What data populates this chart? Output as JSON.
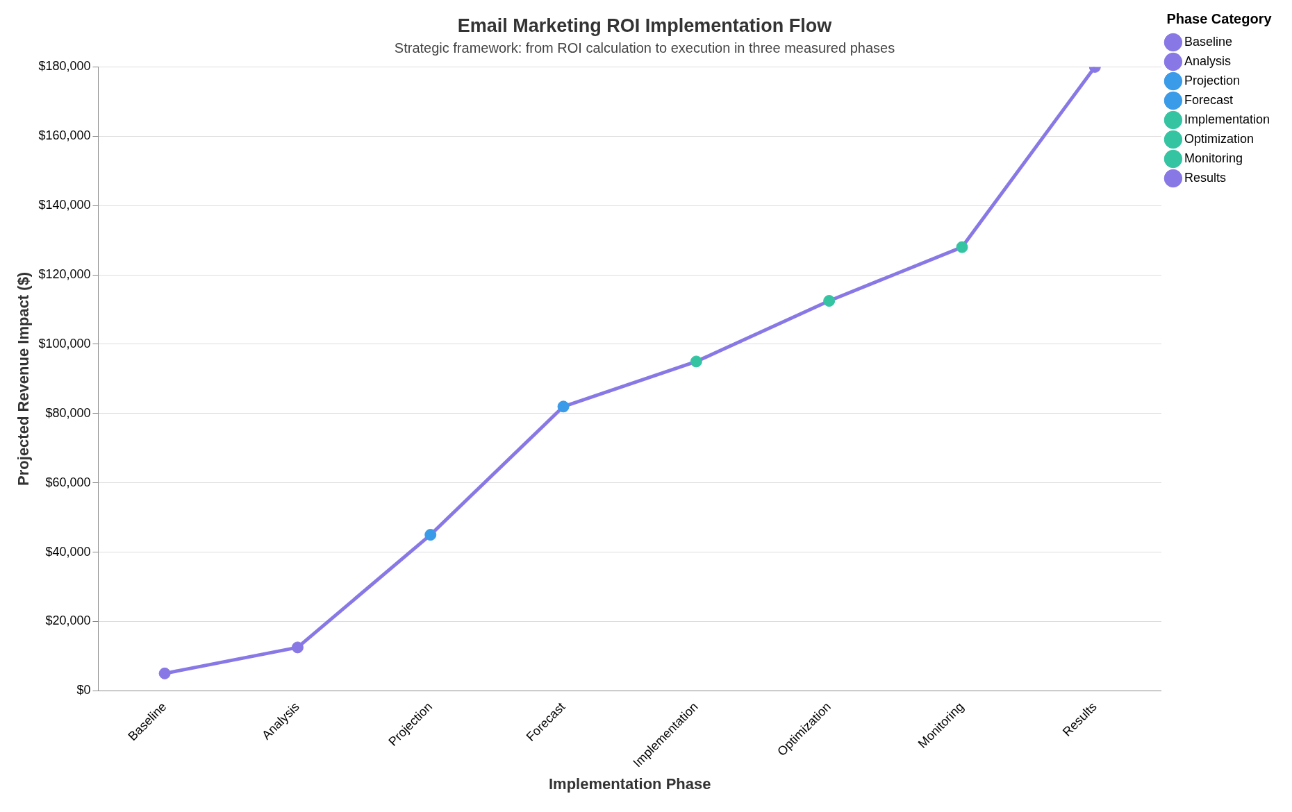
{
  "chart_data": {
    "type": "line",
    "title": "Email Marketing ROI Implementation Flow",
    "subtitle": "Strategic framework: from ROI calculation to execution in three measured phases",
    "xlabel": "Implementation Phase",
    "ylabel": "Projected Revenue Impact ($)",
    "legend_title": "Phase Category",
    "categories": [
      "Baseline",
      "Analysis",
      "Projection",
      "Forecast",
      "Implementation",
      "Optimization",
      "Monitoring",
      "Results"
    ],
    "series": [
      {
        "color": "#8878e6",
        "marker": "none",
        "values": [
          5000,
          12500,
          45000,
          82000,
          95000,
          112500,
          128000,
          180000
        ]
      },
      {
        "type": "scatter",
        "name": "Baseline",
        "color": "#8878e6",
        "x": [
          "Baseline"
        ],
        "values": [
          5000
        ]
      },
      {
        "type": "scatter",
        "name": "Analysis",
        "color": "#8878e6",
        "x": [
          "Analysis"
        ],
        "values": [
          12500
        ]
      },
      {
        "type": "scatter",
        "name": "Projection",
        "color": "#3a9be8",
        "x": [
          "Projection"
        ],
        "values": [
          45000
        ]
      },
      {
        "type": "scatter",
        "name": "Forecast",
        "color": "#3a9be8",
        "x": [
          "Forecast"
        ],
        "values": [
          82000
        ]
      },
      {
        "type": "scatter",
        "name": "Implementation",
        "color": "#35c4a2",
        "x": [
          "Implementation"
        ],
        "values": [
          95000
        ]
      },
      {
        "type": "scatter",
        "name": "Optimization",
        "color": "#35c4a2",
        "x": [
          "Optimization"
        ],
        "values": [
          112500
        ]
      },
      {
        "type": "scatter",
        "name": "Monitoring",
        "color": "#35c4a2",
        "x": [
          "Monitoring"
        ],
        "values": [
          128000
        ]
      },
      {
        "type": "scatter",
        "name": "Results",
        "color": "#8878e6",
        "x": [
          "Results"
        ],
        "values": [
          180000
        ]
      }
    ],
    "ylim": [
      0,
      180000
    ],
    "yticks": [
      {
        "value": 0,
        "label": "$0"
      },
      {
        "value": 20000,
        "label": "$20,000"
      },
      {
        "value": 40000,
        "label": "$40,000"
      },
      {
        "value": 60000,
        "label": "$60,000"
      },
      {
        "value": 80000,
        "label": "$80,000"
      },
      {
        "value": 100000,
        "label": "$100,000"
      },
      {
        "value": 120000,
        "label": "$120,000"
      },
      {
        "value": 140000,
        "label": "$140,000"
      },
      {
        "value": 160000,
        "label": "$160,000"
      },
      {
        "value": 180000,
        "label": "$180,000"
      }
    ],
    "grid": "y",
    "legend": "top right",
    "marker": "circle",
    "line_style": "solid"
  }
}
